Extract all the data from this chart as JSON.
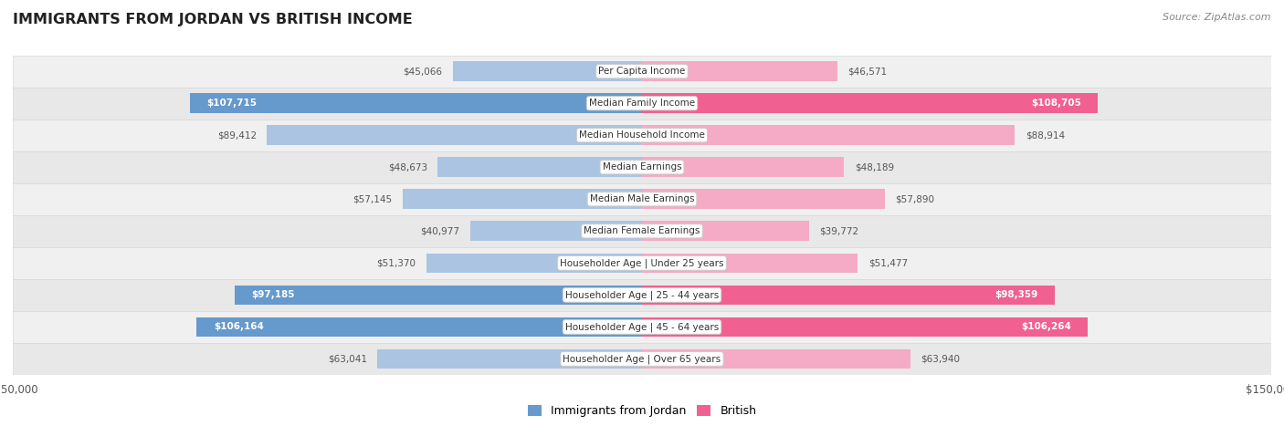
{
  "title": "IMMIGRANTS FROM JORDAN VS BRITISH INCOME",
  "source": "Source: ZipAtlas.com",
  "categories": [
    "Per Capita Income",
    "Median Family Income",
    "Median Household Income",
    "Median Earnings",
    "Median Male Earnings",
    "Median Female Earnings",
    "Householder Age | Under 25 years",
    "Householder Age | 25 - 44 years",
    "Householder Age | 45 - 64 years",
    "Householder Age | Over 65 years"
  ],
  "jordan_values": [
    45066,
    107715,
    89412,
    48673,
    57145,
    40977,
    51370,
    97185,
    106164,
    63041
  ],
  "british_values": [
    46571,
    108705,
    88914,
    48189,
    57890,
    39772,
    51477,
    98359,
    106264,
    63940
  ],
  "jordan_labels": [
    "$45,066",
    "$107,715",
    "$89,412",
    "$48,673",
    "$57,145",
    "$40,977",
    "$51,370",
    "$97,185",
    "$106,164",
    "$63,041"
  ],
  "british_labels": [
    "$46,571",
    "$108,705",
    "$88,914",
    "$48,189",
    "$57,890",
    "$39,772",
    "$51,477",
    "$98,359",
    "$106,264",
    "$63,940"
  ],
  "jordan_color_light": "#aac4e2",
  "jordan_color_dark": "#6699cc",
  "british_color_light": "#f5aac5",
  "british_color_dark": "#f06090",
  "max_value": 150000,
  "bar_height": 0.62,
  "label_threshold": 90000,
  "row_colors": [
    "#f0f0f0",
    "#e8e8e8"
  ],
  "row_border_color": "#d8d8d8"
}
